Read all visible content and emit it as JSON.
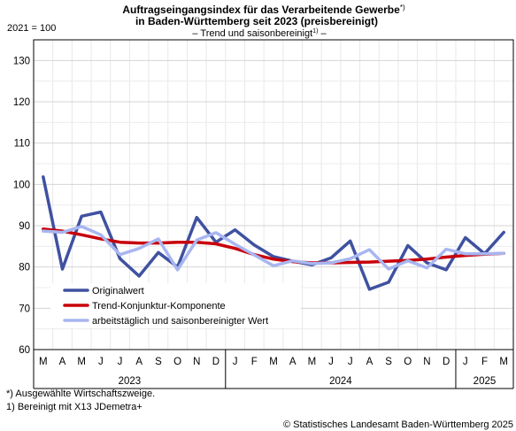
{
  "chart_data": {
    "type": "line",
    "title_line1": "Auftragseingangsindex für das Verarbeitende Gewerbe",
    "title_line1_sup": "*)",
    "title_line2": "in Baden-Württemberg seit 2023 (preisbereinigt)",
    "subtitle_prefix": "– Trend und saisonbereinigt",
    "subtitle_sup": "1)",
    "subtitle_suffix": " –",
    "ylabel": "2021 = 100",
    "ylim": [
      60,
      135
    ],
    "yticks": [
      60,
      70,
      80,
      90,
      100,
      110,
      120,
      130
    ],
    "grid": true,
    "legend_position": "lower-left",
    "categories": [
      "M",
      "A",
      "M",
      "J",
      "J",
      "A",
      "S",
      "O",
      "N",
      "D",
      "J",
      "F",
      "M",
      "A",
      "M",
      "J",
      "J",
      "A",
      "S",
      "O",
      "N",
      "D",
      "J",
      "F",
      "M"
    ],
    "years": [
      {
        "label": "2023",
        "start": 0,
        "end": 9
      },
      {
        "label": "2024",
        "start": 10,
        "end": 21
      },
      {
        "label": "2025",
        "start": 22,
        "end": 24
      }
    ],
    "series": [
      {
        "name": "Originalwert",
        "color": "#3f51a0",
        "width": 3.5,
        "values": [
          101.8,
          79.5,
          92.3,
          93.3,
          82.0,
          77.8,
          83.5,
          80.0,
          92.0,
          86.0,
          89.0,
          85.3,
          82.5,
          81.4,
          80.5,
          82.2,
          86.3,
          74.6,
          76.3,
          85.2,
          81.0,
          79.3,
          87.1,
          83.2,
          88.4
        ]
      },
      {
        "name": "Trend-Konjunktur-Komponente",
        "color": "#c8000a",
        "width": 3.5,
        "values": [
          89.2,
          88.7,
          87.8,
          86.8,
          86.0,
          85.8,
          85.8,
          86.0,
          86.0,
          85.6,
          84.5,
          83.0,
          81.9,
          81.3,
          81.0,
          81.0,
          81.1,
          81.2,
          81.4,
          81.6,
          81.9,
          82.4,
          82.8,
          83.1,
          83.3
        ]
      },
      {
        "name": "arbeitstäglich und saisonbereinigter Wert",
        "color": "#a8b6f0",
        "width": 3.5,
        "values": [
          88.7,
          88.4,
          89.8,
          87.8,
          83.0,
          84.5,
          86.8,
          79.3,
          86.5,
          88.3,
          85.5,
          82.9,
          80.3,
          81.5,
          80.8,
          81.0,
          82.0,
          84.2,
          79.5,
          81.5,
          79.8,
          84.3,
          83.2,
          83.2,
          83.3
        ]
      }
    ]
  },
  "footnotes": [
    "*) Ausgewählte Wirtschaftszweige.",
    "1) Bereinigt mit X13 JDemetra+"
  ],
  "copyright": "© Statistisches Landesamt Baden-Württemberg 2025"
}
